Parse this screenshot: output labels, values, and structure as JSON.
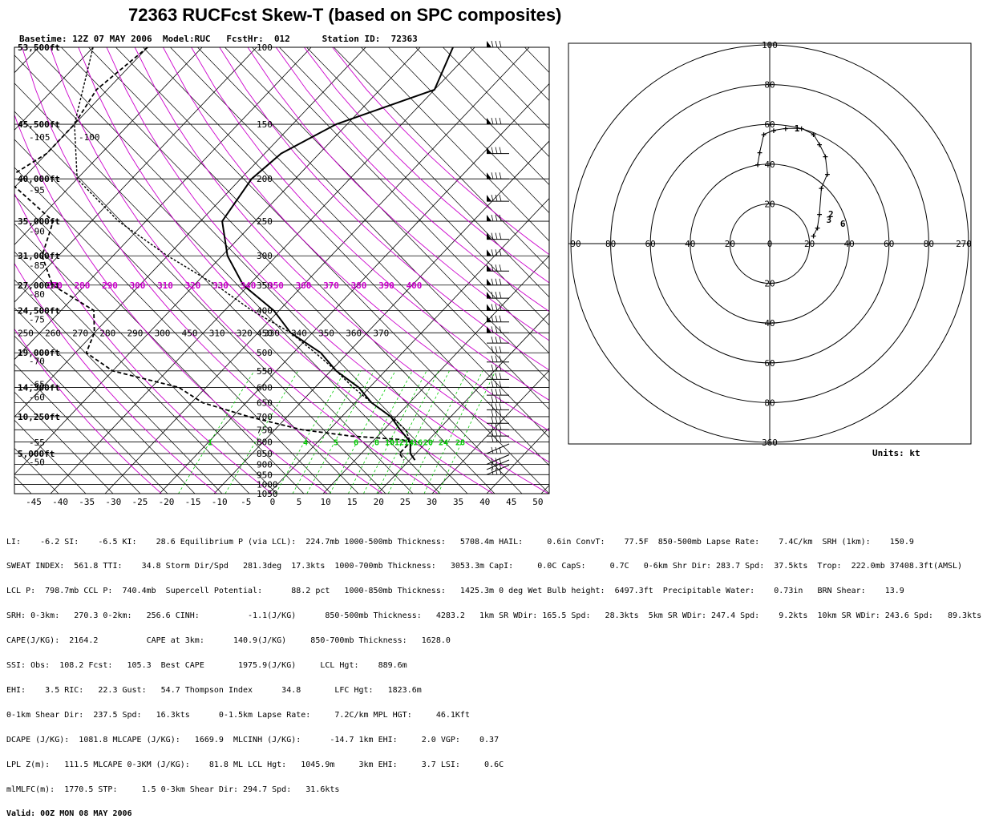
{
  "title": "72363 RUCFcst Skew-T (based on SPC composites)",
  "header": {
    "basetime_label": "Basetime:",
    "basetime": "12Z 07 MAY 2006",
    "model_label": "Model:",
    "model": "RUC",
    "fcsthr_label": "FcstHr:",
    "fcsthr": "012",
    "station_label": "Station ID:",
    "station": "72363"
  },
  "colors": {
    "grid": "#000000",
    "dry_adiabat": "#cc00cc",
    "mixing_ratio": "#00cc00",
    "theta_label": "#cc00cc",
    "mixing_label": "#00cc00"
  },
  "chart_data": [
    {
      "type": "line",
      "name": "skew-t",
      "pressure_levels": [
        100,
        150,
        200,
        250,
        300,
        350,
        400,
        450,
        500,
        550,
        600,
        650,
        700,
        750,
        800,
        850,
        900,
        950,
        1000,
        1050
      ],
      "height_labels": [
        {
          "p": 100,
          "text": "53,500ft"
        },
        {
          "p": 150,
          "text": "45,500ft"
        },
        {
          "p": 200,
          "text": "40,000ft"
        },
        {
          "p": 250,
          "text": "35,000ft"
        },
        {
          "p": 300,
          "text": "31,000ft"
        },
        {
          "p": 350,
          "text": "27,000ft"
        },
        {
          "p": 400,
          "text": "24,500ft"
        },
        {
          "p": 500,
          "text": "19,000ft"
        },
        {
          "p": 600,
          "text": "14,300ft"
        },
        {
          "p": 700,
          "text": "10,250ft"
        },
        {
          "p": 850,
          "text": "5,000ft"
        }
      ],
      "left_temp_labels": [
        {
          "p": 155,
          "text": "-105"
        },
        {
          "p": 155,
          "text": "-100",
          "dx": 62
        },
        {
          "p": 205,
          "text": "-95"
        },
        {
          "p": 255,
          "text": "-90"
        },
        {
          "p": 305,
          "text": "-85"
        },
        {
          "p": 355,
          "text": "-80"
        },
        {
          "p": 405,
          "text": "-75"
        },
        {
          "p": 505,
          "text": "-70"
        },
        {
          "p": 570,
          "text": "-65"
        },
        {
          "p": 610,
          "text": "-60"
        },
        {
          "p": 775,
          "text": "-55"
        },
        {
          "p": 860,
          "text": "-50"
        }
      ],
      "x_ticks": [
        -45,
        -40,
        -35,
        -30,
        -25,
        -20,
        -15,
        -10,
        -5,
        0,
        5,
        10,
        15,
        20,
        25,
        30,
        35,
        40,
        45,
        50
      ],
      "theta_labels_350": [
        "270",
        "280",
        "290",
        "300",
        "310",
        "320",
        "330",
        "340",
        "350",
        "360",
        "370",
        "380",
        "390",
        "400"
      ],
      "theta_labels_450": [
        "250",
        "260",
        "270",
        "280",
        "290",
        "300",
        "450",
        "310",
        "320",
        "330",
        "340",
        "350",
        "360",
        "370"
      ],
      "mixing_labels": [
        "1",
        "4",
        "5",
        "6",
        "8",
        "10",
        "12",
        "14",
        "16",
        "20",
        "24",
        "28"
      ],
      "temperature": [
        [
          100,
          -44
        ],
        [
          125,
          -40
        ],
        [
          150,
          -52
        ],
        [
          175,
          -57
        ],
        [
          200,
          -58
        ],
        [
          250,
          -56
        ],
        [
          300,
          -49
        ],
        [
          350,
          -41
        ],
        [
          400,
          -31
        ],
        [
          450,
          -24
        ],
        [
          500,
          -15
        ],
        [
          550,
          -9
        ],
        [
          600,
          -2
        ],
        [
          650,
          3
        ],
        [
          700,
          9
        ],
        [
          750,
          13
        ],
        [
          800,
          17
        ],
        [
          850,
          19
        ],
        [
          880,
          21
        ]
      ],
      "dewpoint": [
        [
          100,
          -100
        ],
        [
          125,
          -102
        ],
        [
          150,
          -100
        ],
        [
          175,
          -100
        ],
        [
          200,
          -103
        ],
        [
          250,
          -87
        ],
        [
          300,
          -83
        ],
        [
          350,
          -76
        ],
        [
          400,
          -64
        ],
        [
          450,
          -60
        ],
        [
          500,
          -58
        ],
        [
          550,
          -50
        ],
        [
          600,
          -35
        ],
        [
          650,
          -28
        ],
        [
          700,
          -17
        ],
        [
          750,
          -5
        ],
        [
          775,
          5
        ],
        [
          790,
          15
        ],
        [
          800,
          17
        ],
        [
          850,
          17
        ],
        [
          880,
          19
        ]
      ],
      "parcel": [
        [
          100,
          -110
        ],
        [
          150,
          -100
        ],
        [
          200,
          -90
        ],
        [
          250,
          -75
        ],
        [
          300,
          -60
        ],
        [
          350,
          -46
        ],
        [
          400,
          -35
        ],
        [
          450,
          -24
        ],
        [
          500,
          -16
        ],
        [
          550,
          -9
        ],
        [
          600,
          -3
        ],
        [
          650,
          3
        ],
        [
          700,
          9
        ],
        [
          750,
          14
        ],
        [
          800,
          17
        ],
        [
          850,
          19
        ]
      ],
      "wind_barbs_p": [
        100,
        150,
        175,
        200,
        225,
        250,
        275,
        300,
        325,
        350,
        375,
        400,
        425,
        450,
        475,
        500,
        525,
        550,
        575,
        600,
        625,
        650,
        675,
        700,
        725,
        750,
        775,
        800,
        850,
        900,
        925,
        950
      ]
    },
    {
      "type": "line",
      "name": "hodograph",
      "units": "Units: kt",
      "ring_labels_top": [
        "100",
        "80",
        "60",
        "40",
        "20"
      ],
      "ring_labels_bottom": [
        "20",
        "40",
        "60",
        "80",
        "360"
      ],
      "axis_labels_left": [
        "90",
        "80",
        "60",
        "40",
        "20",
        "0"
      ],
      "axis_labels_right": [
        "20",
        "40",
        "60",
        "80",
        "270"
      ],
      "point_labels": [
        "1",
        "6",
        "3",
        "2"
      ],
      "hodo_points": [
        [
          22,
          -4
        ],
        [
          24,
          -8
        ],
        [
          25,
          -15
        ],
        [
          26,
          -28
        ],
        [
          29,
          -35
        ],
        [
          28,
          -44
        ],
        [
          25,
          -50
        ],
        [
          22,
          -55
        ],
        [
          16,
          -58
        ],
        [
          8,
          -58
        ],
        [
          2,
          -57
        ],
        [
          -3,
          -55
        ],
        [
          -5,
          -46
        ],
        [
          -6,
          -40
        ]
      ]
    }
  ],
  "units": "Units: kt",
  "params": [
    "LI:    -6.2 SI:    -6.5 KI:    28.6 Equilibrium P (via LCL):  224.7mb 1000-500mb Thickness:   5708.4m HAIL:     0.6in ConvT:    77.5F  850-500mb Lapse Rate:    7.4C/km  SRH (1km):    150.9",
    "SWEAT INDEX:  561.8 TTI:    34.8 Storm Dir/Spd   281.3deg  17.3kts  1000-700mb Thickness:   3053.3m CapI:     0.0C CapS:     0.7C   0-6km Shr Dir: 283.7 Spd:  37.5kts  Trop:  222.0mb 37408.3ft(AMSL)",
    "LCL P:  798.7mb CCL P:  740.4mb  Supercell Potential:      88.2 pct   1000-850mb Thickness:   1425.3m 0 deg Wet Bulb height:  6497.3ft  Precipitable Water:    0.73in   BRN Shear:    13.9",
    "SRH: 0-3km:   270.3 0-2km:   256.6 CINH:          -1.1(J/KG)      850-500mb Thickness:   4283.2   1km SR WDir: 165.5 Spd:   28.3kts  5km SR WDir: 247.4 Spd:    9.2kts  10km SR WDir: 243.6 Spd:   89.3kts",
    "CAPE(J/KG):  2164.2          CAPE at 3km:      140.9(J/KG)     850-700mb Thickness:   1628.0",
    "SSI: Obs:  108.2 Fcst:   105.3  Best CAPE       1975.9(J/KG)     LCL Hgt:    889.6m",
    "EHI:    3.5 RIC:   22.3 Gust:   54.7 Thompson Index      34.8       LFC Hgt:   1823.6m",
    "0-1km Shear Dir:  237.5 Spd:   16.3kts      0-1.5km Lapse Rate:     7.2C/km MPL HGT:     46.1Kft",
    "DCAPE (J/KG):  1081.8 MLCAPE (J/KG):   1669.9  MLCINH (J/KG):      -14.7 1km EHI:     2.0 VGP:    0.37",
    "LPL Z(m):   111.5 MLCAPE 0-3KM (J/KG):    81.8 ML LCL Hgt:   1045.9m     3km EHI:     3.7 LSI:     0.6C",
    "mlMLFC(m):  1770.5 STP:     1.5 0-3km Shear Dir: 294.7 Spd:   31.6kts"
  ],
  "valid": "Valid: 00Z MON 08 MAY 2006"
}
